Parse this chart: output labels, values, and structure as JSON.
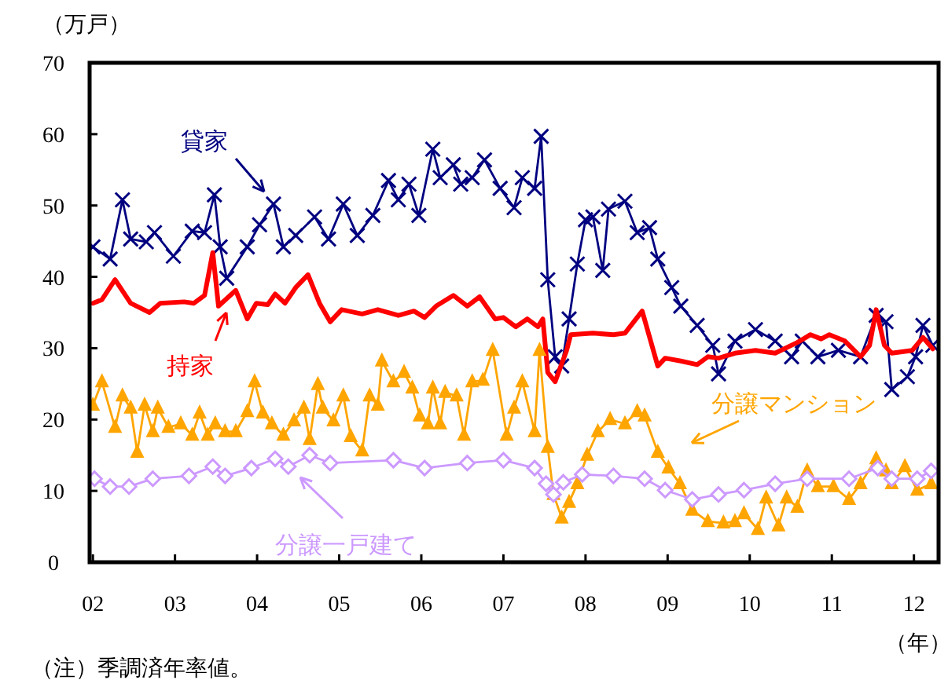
{
  "chart_data": {
    "type": "line",
    "ylabel": "（万戸）",
    "xlabel": "（年）",
    "annotations": [
      "（注）季調済年率値。"
    ],
    "xlim": [
      2001.96,
      2012.3
    ],
    "ylim": [
      0,
      70
    ],
    "yticks": [
      0,
      10,
      20,
      30,
      40,
      50,
      60,
      70
    ],
    "xticks": [
      {
        "value": 2002,
        "label": "02"
      },
      {
        "value": 2003,
        "label": "03"
      },
      {
        "value": 2004,
        "label": "04"
      },
      {
        "value": 2005,
        "label": "05"
      },
      {
        "value": 2006,
        "label": "06"
      },
      {
        "value": 2007,
        "label": "07"
      },
      {
        "value": 2008,
        "label": "08"
      },
      {
        "value": 2009,
        "label": "09"
      },
      {
        "value": 2010,
        "label": "10"
      },
      {
        "value": 2011,
        "label": "11"
      },
      {
        "value": 2012,
        "label": "12"
      }
    ],
    "grid": false,
    "legend": "bottom left",
    "series": [
      {
        "name": "貸家",
        "color": "#000080",
        "marker": "cross",
        "x": [
          2002.0,
          2002.21,
          2002.36,
          2002.46,
          2002.65,
          2002.75,
          2002.98,
          2003.21,
          2003.36,
          2003.48,
          2003.55,
          2003.63,
          2003.88,
          2004.03,
          2004.2,
          2004.32,
          2004.47,
          2004.7,
          2004.87,
          2005.05,
          2005.22,
          2005.41,
          2005.6,
          2005.72,
          2005.85,
          2005.97,
          2006.14,
          2006.23,
          2006.39,
          2006.48,
          2006.62,
          2006.77,
          2006.96,
          2007.13,
          2007.23,
          2007.38,
          2007.46,
          2007.54,
          2007.63,
          2007.71,
          2007.8,
          2007.9,
          2008.0,
          2008.09,
          2008.21,
          2008.28,
          2008.48,
          2008.63,
          2008.78,
          2008.88,
          2009.05,
          2009.16,
          2009.36,
          2009.55,
          2009.62,
          2009.82,
          2010.07,
          2010.31,
          2010.51,
          2010.64,
          2010.83,
          2011.08,
          2011.35,
          2011.54,
          2011.66,
          2011.73,
          2011.92,
          2012.02,
          2012.11,
          2012.23
        ],
        "values": [
          44.2,
          42.5,
          50.8,
          45.3,
          44.9,
          46.2,
          42.9,
          46.4,
          46.2,
          51.5,
          44.2,
          39.8,
          44.2,
          47.3,
          50.2,
          44.2,
          45.8,
          48.4,
          45.3,
          50.2,
          45.8,
          48.6,
          53.5,
          50.8,
          53.0,
          48.6,
          57.9,
          53.9,
          55.7,
          53.0,
          53.9,
          56.4,
          52.4,
          49.7,
          53.9,
          52.4,
          59.7,
          39.6,
          28.8,
          27.5,
          34.1,
          41.8,
          48.0,
          48.4,
          40.9,
          49.5,
          50.6,
          46.2,
          46.9,
          42.5,
          38.5,
          35.9,
          33.2,
          30.4,
          26.4,
          31.0,
          32.6,
          31.0,
          28.8,
          31.0,
          28.8,
          29.7,
          28.8,
          34.6,
          33.7,
          24.2,
          26.0,
          28.8,
          33.2,
          30.4
        ]
      },
      {
        "name": "持家",
        "color": "#ff0000",
        "marker": "none",
        "x": [
          2002.0,
          2002.11,
          2002.27,
          2002.46,
          2002.69,
          2002.82,
          2003.11,
          2003.23,
          2003.36,
          2003.46,
          2003.53,
          2003.74,
          2003.88,
          2003.99,
          2004.13,
          2004.22,
          2004.34,
          2004.47,
          2004.62,
          2004.76,
          2004.89,
          2005.03,
          2005.28,
          2005.47,
          2005.72,
          2005.91,
          2006.04,
          2006.18,
          2006.39,
          2006.56,
          2006.71,
          2006.9,
          2007.0,
          2007.15,
          2007.29,
          2007.42,
          2007.48,
          2007.54,
          2007.63,
          2007.77,
          2007.82,
          2008.09,
          2008.34,
          2008.48,
          2008.69,
          2008.88,
          2008.97,
          2009.16,
          2009.36,
          2009.49,
          2009.62,
          2009.82,
          2010.07,
          2010.31,
          2010.58,
          2010.74,
          2010.87,
          2010.97,
          2011.16,
          2011.35,
          2011.46,
          2011.54,
          2011.64,
          2011.73,
          2011.98,
          2012.11,
          2012.23
        ],
        "values": [
          36.3,
          36.8,
          39.6,
          36.3,
          35.0,
          36.3,
          36.5,
          36.3,
          37.4,
          43.4,
          35.9,
          38.1,
          34.1,
          36.3,
          36.1,
          37.6,
          36.3,
          38.5,
          40.3,
          36.3,
          33.7,
          35.4,
          34.8,
          35.4,
          34.6,
          35.2,
          34.3,
          35.9,
          37.4,
          35.9,
          37.2,
          34.1,
          34.3,
          33.0,
          34.1,
          33.0,
          34.1,
          26.6,
          25.3,
          29.7,
          31.9,
          32.1,
          31.9,
          32.1,
          35.2,
          27.5,
          28.6,
          28.2,
          27.7,
          28.8,
          28.6,
          29.3,
          29.7,
          29.3,
          30.8,
          31.9,
          31.3,
          31.9,
          31.0,
          28.8,
          30.4,
          35.4,
          30.4,
          29.3,
          29.7,
          31.5,
          29.9
        ]
      },
      {
        "name": "分譲マンション",
        "color": "#ffa500",
        "marker": "triangle",
        "x": [
          2002.0,
          2002.11,
          2002.27,
          2002.36,
          2002.46,
          2002.54,
          2002.63,
          2002.73,
          2002.79,
          2002.92,
          2003.07,
          2003.21,
          2003.3,
          2003.4,
          2003.49,
          2003.61,
          2003.74,
          2003.88,
          2003.97,
          2004.07,
          2004.18,
          2004.32,
          2004.45,
          2004.57,
          2004.64,
          2004.74,
          2004.8,
          2004.93,
          2005.05,
          2005.14,
          2005.28,
          2005.37,
          2005.47,
          2005.52,
          2005.66,
          2005.79,
          2005.89,
          2005.98,
          2006.08,
          2006.14,
          2006.23,
          2006.29,
          2006.43,
          2006.52,
          2006.62,
          2006.75,
          2006.87,
          2007.04,
          2007.13,
          2007.23,
          2007.38,
          2007.44,
          2007.54,
          2007.61,
          2007.71,
          2007.8,
          2007.9,
          2008.02,
          2008.15,
          2008.3,
          2008.48,
          2008.63,
          2008.72,
          2008.88,
          2009.01,
          2009.15,
          2009.3,
          2009.49,
          2009.68,
          2009.82,
          2009.93,
          2010.1,
          2010.2,
          2010.35,
          2010.45,
          2010.58,
          2010.7,
          2010.83,
          2011.02,
          2011.21,
          2011.35,
          2011.54,
          2011.66,
          2011.73,
          2011.89,
          2012.04,
          2012.21
        ],
        "values": [
          22.0,
          25.3,
          18.9,
          23.3,
          21.6,
          15.4,
          22.0,
          18.3,
          21.6,
          18.9,
          19.4,
          17.8,
          20.9,
          17.8,
          19.4,
          18.3,
          18.3,
          21.1,
          25.3,
          20.9,
          19.4,
          17.8,
          19.8,
          21.6,
          17.2,
          24.9,
          21.6,
          19.8,
          23.3,
          17.6,
          15.6,
          23.3,
          22.0,
          28.2,
          25.3,
          26.6,
          24.4,
          20.5,
          19.4,
          24.4,
          19.4,
          23.8,
          23.3,
          17.8,
          25.3,
          25.5,
          29.7,
          17.8,
          21.6,
          25.3,
          18.3,
          29.7,
          16.1,
          9.5,
          6.2,
          8.4,
          11.0,
          15.0,
          18.3,
          20.0,
          19.4,
          21.1,
          20.5,
          15.4,
          13.2,
          11.0,
          7.3,
          5.7,
          5.5,
          5.7,
          6.8,
          4.6,
          9.0,
          5.1,
          9.0,
          7.7,
          12.8,
          10.6,
          10.6,
          8.8,
          11.0,
          14.5,
          12.8,
          11.0,
          13.4,
          10.1,
          11.0
        ]
      },
      {
        "name": "分譲一戸建て",
        "color": "#cc99ff",
        "marker": "diamond",
        "x": [
          2002.02,
          2002.21,
          2002.44,
          2002.73,
          2003.17,
          2003.46,
          2003.61,
          2003.93,
          2004.22,
          2004.38,
          2004.64,
          2004.89,
          2005.66,
          2006.04,
          2006.56,
          2007.0,
          2007.38,
          2007.52,
          2007.61,
          2007.73,
          2007.96,
          2008.34,
          2008.72,
          2008.97,
          2009.3,
          2009.62,
          2009.93,
          2010.31,
          2010.7,
          2011.21,
          2011.56,
          2011.73,
          2012.04,
          2012.21
        ],
        "values": [
          11.7,
          10.6,
          10.6,
          11.7,
          12.1,
          13.4,
          12.1,
          13.2,
          14.5,
          13.4,
          15.0,
          13.9,
          14.3,
          13.2,
          13.9,
          14.3,
          13.2,
          11.0,
          9.5,
          11.2,
          12.3,
          12.1,
          11.7,
          10.1,
          8.8,
          9.5,
          10.1,
          11.0,
          11.7,
          11.7,
          13.2,
          11.7,
          11.7,
          12.8
        ]
      }
    ]
  }
}
